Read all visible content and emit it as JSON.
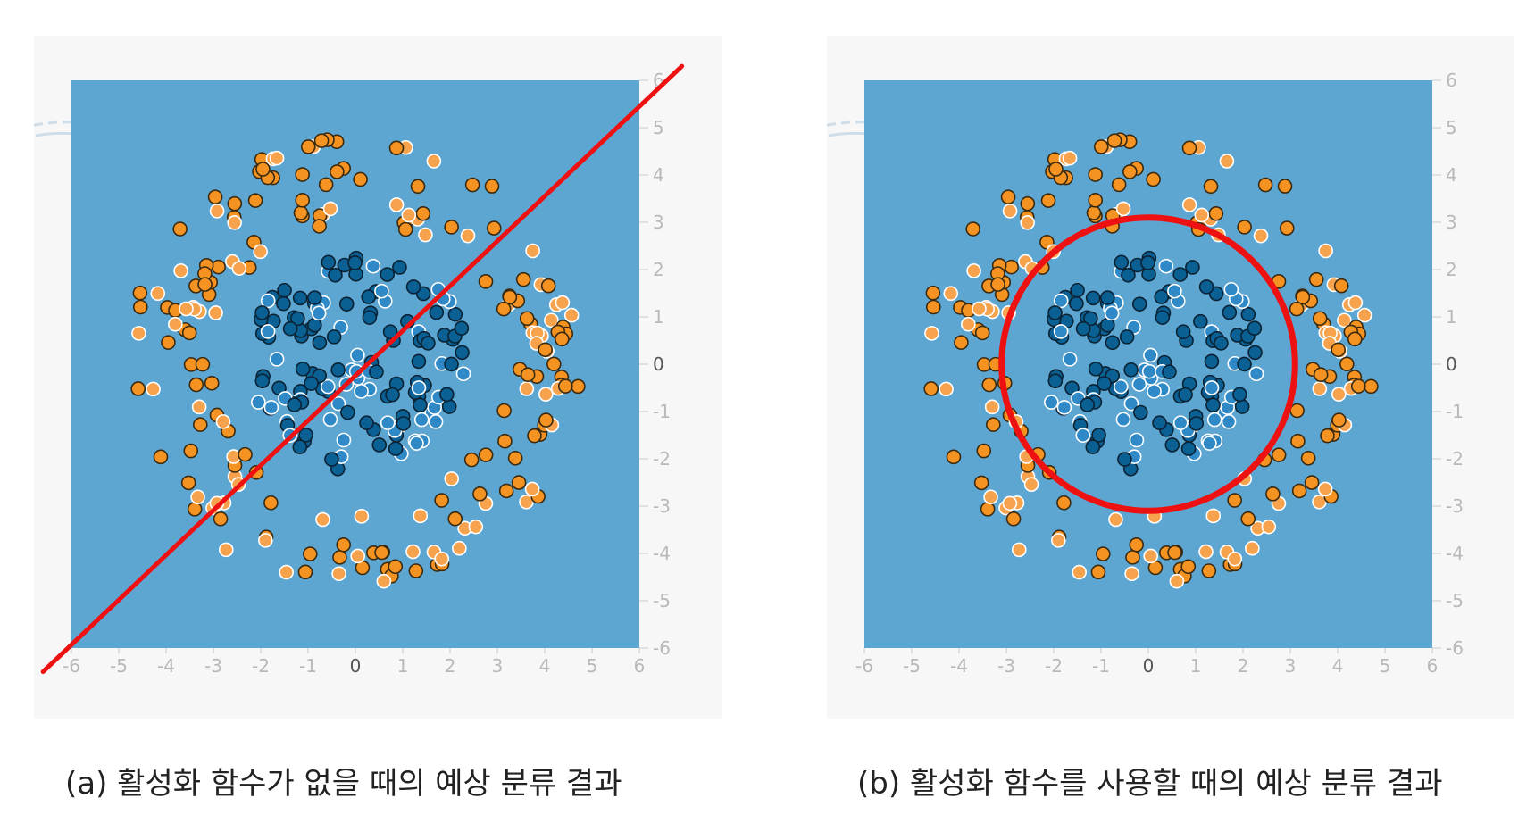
{
  "colors": {
    "panel_bg": "#f7f7f7",
    "plot_bg": "#5ea6d2",
    "positive_class": "#0a5f93",
    "positive_class_light": "#2e89c6",
    "negative_class": "#f59322",
    "negative_class_light": "#f7a34e",
    "boundary": "#ee1111",
    "tick_label": "#b9b9b9"
  },
  "chart_data": [
    {
      "type": "scatter",
      "title": "",
      "xlabel": "",
      "ylabel": "",
      "xlim": [
        -6,
        6
      ],
      "ylim": [
        -6,
        6
      ],
      "x_ticks": [
        "-6",
        "-5",
        "-4",
        "-3",
        "-2",
        "-1",
        "0",
        "1",
        "2",
        "3",
        "4",
        "5",
        "6"
      ],
      "y_ticks": [
        "6",
        "5",
        "4",
        "3",
        "2",
        "1",
        "0",
        "-1",
        "-2",
        "-3",
        "-4",
        "-5",
        "-6"
      ],
      "grid": false,
      "series": [
        {
          "class": "inner",
          "color": "#0a5f93",
          "radius_range": [
            0,
            2.4
          ],
          "count": 140
        },
        {
          "class": "outer",
          "color": "#f59322",
          "radius_range": [
            3.0,
            4.8
          ],
          "count": 190
        }
      ],
      "decision_boundary": {
        "shape": "line",
        "from": [
          -6.6,
          -6.5
        ],
        "to": [
          6.9,
          6.3
        ],
        "color": "#ee1111"
      }
    },
    {
      "type": "scatter",
      "title": "",
      "xlabel": "",
      "ylabel": "",
      "xlim": [
        -6,
        6
      ],
      "ylim": [
        -6,
        6
      ],
      "x_ticks": [
        "-6",
        "-5",
        "-4",
        "-3",
        "-2",
        "-1",
        "0",
        "1",
        "2",
        "3",
        "4",
        "5",
        "6"
      ],
      "y_ticks": [
        "6",
        "5",
        "4",
        "3",
        "2",
        "1",
        "0",
        "-1",
        "-2",
        "-3",
        "-4",
        "-5",
        "-6"
      ],
      "grid": false,
      "series": [
        {
          "class": "inner",
          "color": "#0a5f93",
          "radius_range": [
            0,
            2.4
          ],
          "count": 140
        },
        {
          "class": "outer",
          "color": "#f59322",
          "radius_range": [
            3.0,
            4.8
          ],
          "count": 190
        }
      ],
      "decision_boundary": {
        "shape": "circle",
        "center": [
          0,
          0
        ],
        "radius": 3.1,
        "color": "#ee1111"
      }
    }
  ],
  "captions": {
    "a": "(a) 활성화 함수가 없을 때의 예상 분류 결과",
    "b": "(b) 활성화 함수를 사용할 때의 예상 분류 결과"
  }
}
